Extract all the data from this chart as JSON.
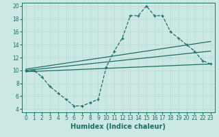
{
  "title": "",
  "xlabel": "Humidex (Indice chaleur)",
  "bg_color": "#cce8e4",
  "line_color": "#1a6e64",
  "xlim": [
    -0.5,
    23.5
  ],
  "ylim": [
    3.5,
    20.5
  ],
  "xticks": [
    0,
    1,
    2,
    3,
    4,
    5,
    6,
    7,
    8,
    9,
    10,
    11,
    12,
    13,
    14,
    15,
    16,
    17,
    18,
    19,
    20,
    21,
    22,
    23
  ],
  "yticks": [
    4,
    6,
    8,
    10,
    12,
    14,
    16,
    18,
    20
  ],
  "curve1_x": [
    0,
    1,
    2,
    3,
    4,
    5,
    6,
    7,
    8,
    9,
    10,
    11,
    12,
    13,
    14,
    15,
    16,
    17,
    18,
    19,
    20,
    21,
    22,
    23
  ],
  "curve1_y": [
    10,
    10,
    9,
    7.5,
    6.5,
    5.5,
    4.5,
    4.5,
    5,
    5.5,
    10.5,
    13,
    15,
    18.5,
    18.5,
    20,
    18.5,
    18.5,
    16,
    15,
    14,
    13,
    11.5,
    11
  ],
  "line1_x": [
    0,
    23
  ],
  "line1_y": [
    10.0,
    13.0
  ],
  "line2_x": [
    0,
    23
  ],
  "line2_y": [
    10.2,
    14.5
  ],
  "line3_x": [
    0,
    23
  ],
  "line3_y": [
    9.8,
    11.0
  ],
  "grid_color": "#b8d8d4",
  "xlabel_fontsize": 7,
  "tick_fontsize": 5.5
}
